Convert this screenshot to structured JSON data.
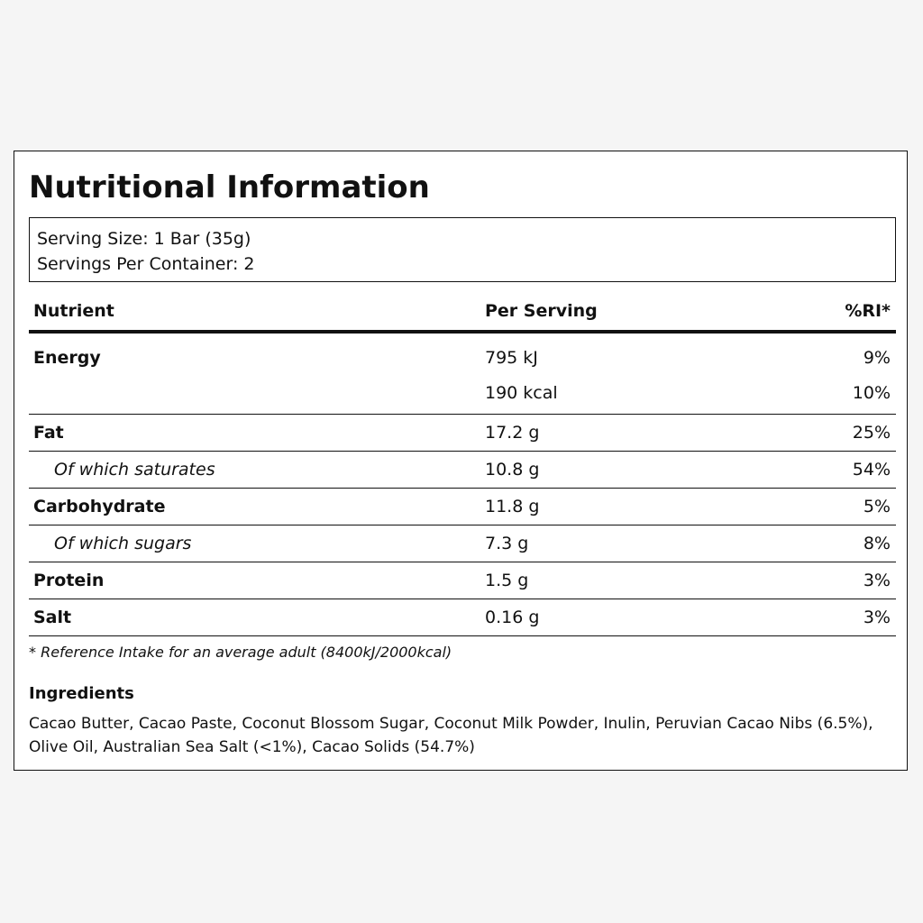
{
  "title": "Nutritional Information",
  "serving": {
    "size": "Serving Size: 1 Bar (35g)",
    "per_container": "Servings Per Container: 2"
  },
  "table": {
    "headers": [
      "Nutrient",
      "Per Serving",
      "%RI*"
    ],
    "energy": {
      "name": "Energy",
      "kj_value": "795 kJ",
      "kj_ri": "9%",
      "kcal_value": "190 kcal",
      "kcal_ri": "10%"
    },
    "rows": [
      {
        "name": "Fat",
        "value": "17.2 g",
        "ri": "25%"
      },
      {
        "name": "Of which saturates",
        "value": "10.8 g",
        "ri": "54%"
      },
      {
        "name": "Carbohydrate",
        "value": "11.8 g",
        "ri": "5%"
      },
      {
        "name": "Of which sugars",
        "value": "7.3 g",
        "ri": "8%"
      },
      {
        "name": "Protein",
        "value": "1.5 g",
        "ri": "3%"
      },
      {
        "name": "Salt",
        "value": "0.16 g",
        "ri": "3%"
      }
    ]
  },
  "footnote": "* Reference Intake for an average adult (8400kJ/2000kcal)",
  "ingredients": {
    "heading": "Ingredients",
    "text": "Cacao Butter, Cacao Paste, Coconut Blossom Sugar, Coconut Milk Powder, Inulin, Peruvian Cacao Nibs (6.5%), Olive Oil, Australian Sea Salt (<1%), Cacao Solids (54.7%)"
  }
}
